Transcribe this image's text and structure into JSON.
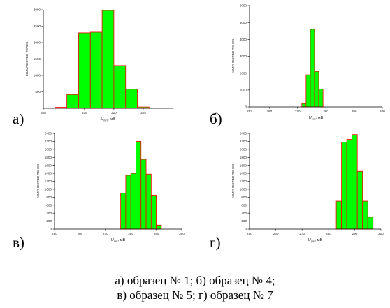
{
  "bar_color": "#00ff00",
  "bar_edge_color": "#ff0000",
  "axis_color": "#000000",
  "caption_lines": [
    "а) образец № 1; б) образец № 4;",
    "в) образец № 5; г) образец № 7"
  ],
  "chart_data": [
    {
      "type": "bar",
      "panel_label": "а)",
      "ylabel": "количество точек",
      "xlabel_symbol": "U",
      "xlabel_sub": "пит",
      "xlabel_unit": "мВ",
      "xlim": [
        308,
        330
      ],
      "ylim": [
        0,
        3000
      ],
      "xticks": [
        "308",
        "315",
        "320",
        "325"
      ],
      "yticks": [
        "500",
        "1000",
        "1500",
        "2000",
        "2500",
        "3000"
      ],
      "bins": [
        {
          "x0": 310,
          "x1": 312,
          "value": 30
        },
        {
          "x0": 312,
          "x1": 314,
          "value": 420
        },
        {
          "x0": 314,
          "x1": 316,
          "value": 2300
        },
        {
          "x0": 316,
          "x1": 318,
          "value": 2320
        },
        {
          "x0": 318,
          "x1": 320,
          "value": 2980
        },
        {
          "x0": 320,
          "x1": 322,
          "value": 1300
        },
        {
          "x0": 322,
          "x1": 324,
          "value": 580
        },
        {
          "x0": 324,
          "x1": 326,
          "value": 40
        }
      ]
    },
    {
      "type": "bar",
      "panel_label": "б)",
      "ylabel": "количество точек",
      "xlabel_symbol": "U",
      "xlabel_sub": "раз",
      "xlabel_unit": "мВ",
      "xlim": [
        253,
        300
      ],
      "ylim": [
        0,
        6000
      ],
      "xticks": [
        "253",
        "260",
        "270",
        "280",
        "290",
        "300"
      ],
      "yticks": [
        "0",
        "1000",
        "2000",
        "3000",
        "4000",
        "5000",
        "6000"
      ],
      "bins": [
        {
          "x0": 271.5,
          "x1": 273,
          "value": 200
        },
        {
          "x0": 273,
          "x1": 274.5,
          "value": 1900
        },
        {
          "x0": 274.5,
          "x1": 276,
          "value": 4600
        },
        {
          "x0": 276,
          "x1": 277.5,
          "value": 2100
        },
        {
          "x0": 277.5,
          "x1": 279,
          "value": 1050
        }
      ]
    },
    {
      "type": "bar",
      "panel_label": "в)",
      "ylabel": "количество точек",
      "xlabel_symbol": "U",
      "xlabel_sub": "пит",
      "xlabel_unit": "мВ",
      "xlim": [
        250,
        300
      ],
      "ylim": [
        0,
        2400
      ],
      "xticks": [
        "250",
        "260",
        "270",
        "280",
        "290",
        "300"
      ],
      "yticks": [
        "0",
        "200",
        "400",
        "600",
        "800",
        "1000",
        "1200",
        "1400",
        "1600",
        "1800",
        "2000",
        "2200",
        "2400"
      ],
      "bins": [
        {
          "x0": 276,
          "x1": 278,
          "value": 900
        },
        {
          "x0": 278,
          "x1": 280,
          "value": 1350
        },
        {
          "x0": 280,
          "x1": 282,
          "value": 1400
        },
        {
          "x0": 282,
          "x1": 284,
          "value": 2200
        },
        {
          "x0": 284,
          "x1": 286,
          "value": 1750
        },
        {
          "x0": 286,
          "x1": 288,
          "value": 1380
        },
        {
          "x0": 288,
          "x1": 290,
          "value": 850
        },
        {
          "x0": 290,
          "x1": 292,
          "value": 100
        }
      ]
    },
    {
      "type": "bar",
      "panel_label": "г)",
      "ylabel": "количество точек",
      "xlabel_symbol": "U",
      "xlabel_sub": "раз",
      "xlabel_unit": "мВ",
      "xlim": [
        250,
        300
      ],
      "ylim": [
        0,
        2400
      ],
      "xticks": [
        "250",
        "260",
        "270",
        "280",
        "290",
        "300"
      ],
      "yticks": [
        "0",
        "200",
        "400",
        "600",
        "800",
        "1000",
        "1200",
        "1400",
        "1600",
        "1800",
        "2000",
        "2200",
        "2400"
      ],
      "bins": [
        {
          "x0": 283,
          "x1": 285,
          "value": 700
        },
        {
          "x0": 285,
          "x1": 287,
          "value": 2180
        },
        {
          "x0": 287,
          "x1": 289,
          "value": 2250
        },
        {
          "x0": 289,
          "x1": 291,
          "value": 2370
        },
        {
          "x0": 291,
          "x1": 293,
          "value": 1450
        },
        {
          "x0": 293,
          "x1": 295,
          "value": 700
        },
        {
          "x0": 295,
          "x1": 297,
          "value": 300
        }
      ]
    }
  ]
}
